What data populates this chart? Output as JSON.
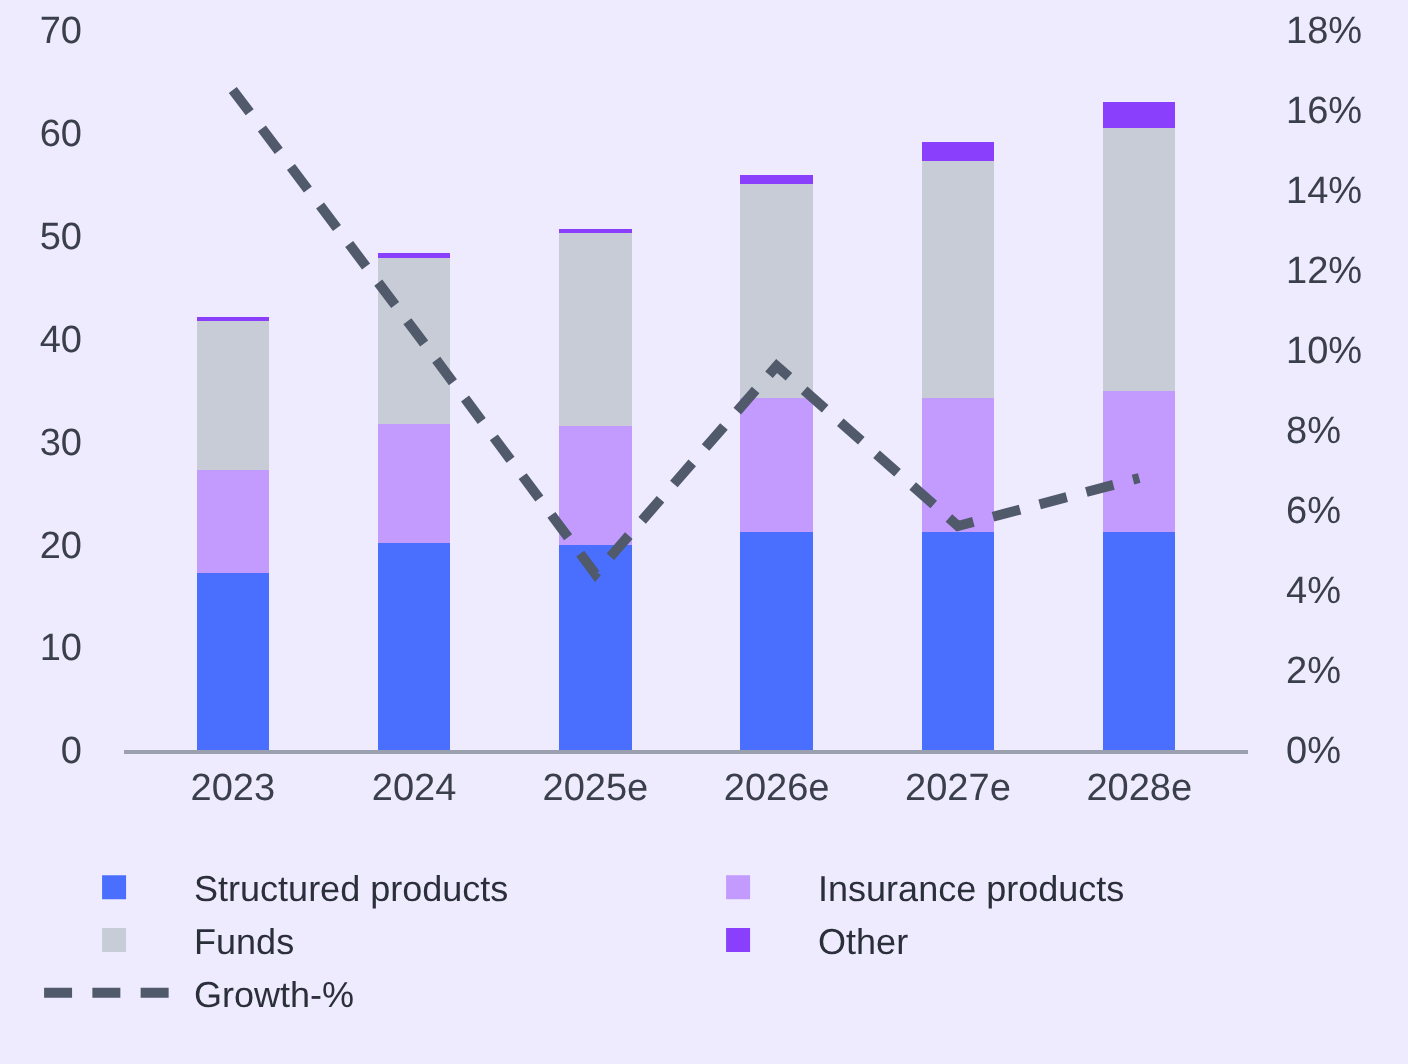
{
  "chart_data": {
    "type": "bar",
    "stacked": true,
    "categories": [
      "2023",
      "2024",
      "2025e",
      "2026e",
      "2027e",
      "2028e"
    ],
    "series": [
      {
        "name": "Structured products",
        "color": "#4a6fff",
        "values": [
          17.2,
          20.1,
          19.9,
          21.2,
          21.2,
          21.2
        ]
      },
      {
        "name": "Insurance products",
        "color": "#c39bff",
        "values": [
          10.0,
          11.6,
          11.6,
          13.0,
          13.0,
          13.7
        ]
      },
      {
        "name": "Funds",
        "color": "#c8ccd6",
        "values": [
          14.5,
          16.1,
          18.8,
          20.8,
          23.1,
          25.6
        ]
      },
      {
        "name": "Other",
        "color": "#8a3ffc",
        "values": [
          0.4,
          0.5,
          0.4,
          0.9,
          1.8,
          2.5
        ]
      },
      {
        "name": "Growth-%",
        "color": "#505a6b",
        "type": "line",
        "axis": "y2",
        "line_style": "dashed",
        "marker": "none",
        "values": [
          16.5,
          10.5,
          4.4,
          9.6,
          5.6,
          6.8
        ]
      }
    ],
    "ylim": [
      0,
      70
    ],
    "yticks": [
      0,
      10,
      20,
      30,
      40,
      50,
      60,
      70
    ],
    "y2lim": [
      0,
      18
    ],
    "y2ticks": [
      {
        "value": 0,
        "label": "0%"
      },
      {
        "value": 2,
        "label": "2%"
      },
      {
        "value": 4,
        "label": "4%"
      },
      {
        "value": 6,
        "label": "6%"
      },
      {
        "value": 8,
        "label": "8%"
      },
      {
        "value": 10,
        "label": "10%"
      },
      {
        "value": 12,
        "label": "12%"
      },
      {
        "value": 14,
        "label": "14%"
      },
      {
        "value": 16,
        "label": "16%"
      },
      {
        "value": 18,
        "label": "18%"
      }
    ],
    "grid": false,
    "legend": "bottom"
  }
}
